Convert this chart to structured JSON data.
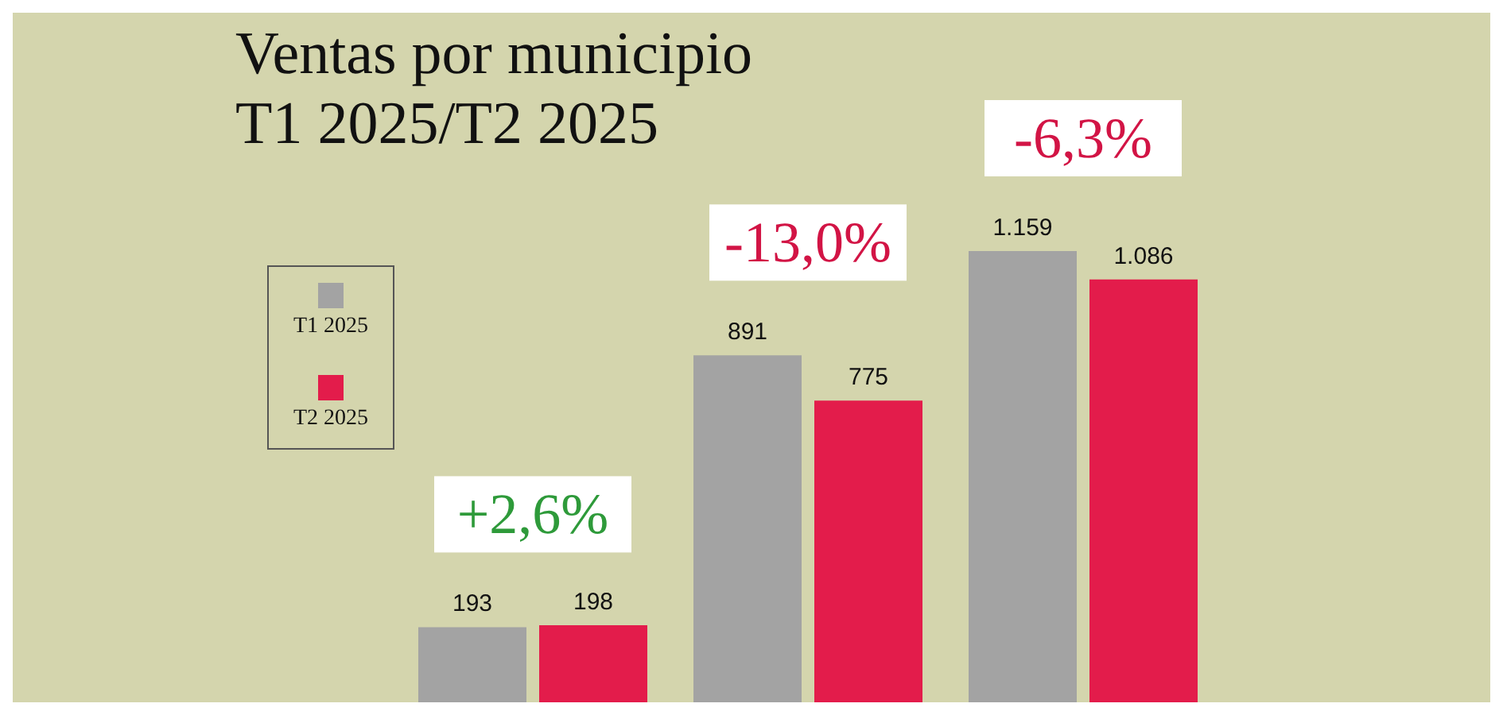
{
  "chart_data": {
    "type": "bar",
    "title": "Ventas por municipio",
    "subtitle": "T1 2025/T2 2025",
    "categories": [
      null,
      null,
      null
    ],
    "series": [
      {
        "name": "T1 2025",
        "color": "#a3a3a3",
        "values": [
          193,
          891,
          1159
        ],
        "value_labels": [
          "193",
          "891",
          "1.159"
        ]
      },
      {
        "name": "T2 2025",
        "color": "#e31c4b",
        "values": [
          198,
          775,
          1086
        ],
        "value_labels": [
          "198",
          "775",
          "1.086"
        ]
      }
    ],
    "annotations": [
      "+2,6%",
      "-13,0%",
      "-6,3%"
    ],
    "legend": "left",
    "grid": false
  }
}
